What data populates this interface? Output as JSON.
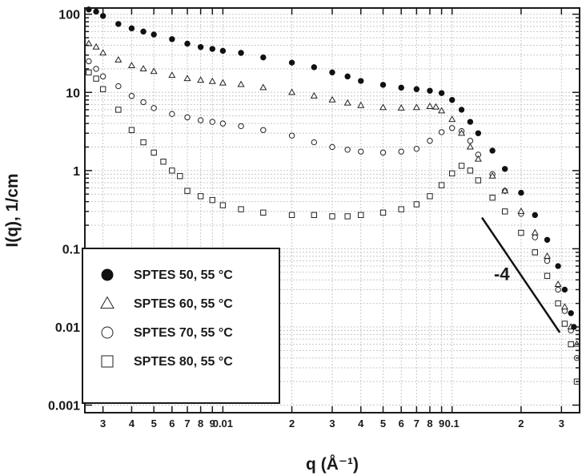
{
  "chart_data": {
    "type": "scatter",
    "title": "",
    "xlabel": "q (Å⁻¹)",
    "ylabel": "I(q), 1/cm",
    "x_scale": "log",
    "y_scale": "log",
    "xlim": [
      0.0025,
      0.36
    ],
    "ylim": [
      0.0008,
      120
    ],
    "grid": true,
    "legend_position": "bottom-left",
    "x_ticks": [
      {
        "value": 0.003,
        "label": "3"
      },
      {
        "value": 0.004,
        "label": "4"
      },
      {
        "value": 0.005,
        "label": "5"
      },
      {
        "value": 0.006,
        "label": "6"
      },
      {
        "value": 0.007,
        "label": "7"
      },
      {
        "value": 0.008,
        "label": "8"
      },
      {
        "value": 0.009,
        "label": "9"
      },
      {
        "value": 0.01,
        "label": "0.01"
      },
      {
        "value": 0.02,
        "label": "2"
      },
      {
        "value": 0.03,
        "label": "3"
      },
      {
        "value": 0.04,
        "label": "4"
      },
      {
        "value": 0.05,
        "label": "5"
      },
      {
        "value": 0.06,
        "label": "6"
      },
      {
        "value": 0.07,
        "label": "7"
      },
      {
        "value": 0.08,
        "label": "8"
      },
      {
        "value": 0.09,
        "label": "9"
      },
      {
        "value": 0.1,
        "label": "0.1"
      },
      {
        "value": 0.2,
        "label": "2"
      },
      {
        "value": 0.3,
        "label": "3"
      }
    ],
    "y_ticks": [
      {
        "value": 100,
        "label": "100"
      },
      {
        "value": 10,
        "label": "10"
      },
      {
        "value": 1,
        "label": "1"
      },
      {
        "value": 0.1,
        "label": "0.1"
      },
      {
        "value": 0.01,
        "label": "0.01"
      },
      {
        "value": 0.001,
        "label": "0.001"
      }
    ],
    "series": [
      {
        "name": "SPTES 50, 55 °C",
        "marker": "filled-circle",
        "points": [
          [
            0.0026,
            115
          ],
          [
            0.0028,
            108
          ],
          [
            0.003,
            95
          ],
          [
            0.0035,
            75
          ],
          [
            0.004,
            66
          ],
          [
            0.0045,
            60
          ],
          [
            0.005,
            55
          ],
          [
            0.006,
            48
          ],
          [
            0.007,
            42
          ],
          [
            0.008,
            38
          ],
          [
            0.009,
            36
          ],
          [
            0.01,
            34
          ],
          [
            0.012,
            32
          ],
          [
            0.015,
            28
          ],
          [
            0.02,
            24
          ],
          [
            0.025,
            21
          ],
          [
            0.03,
            18
          ],
          [
            0.035,
            16
          ],
          [
            0.04,
            14
          ],
          [
            0.05,
            12.5
          ],
          [
            0.06,
            11.5
          ],
          [
            0.07,
            11
          ],
          [
            0.08,
            10.5
          ],
          [
            0.09,
            9.8
          ],
          [
            0.1,
            8
          ],
          [
            0.11,
            6
          ],
          [
            0.12,
            4.2
          ],
          [
            0.13,
            3
          ],
          [
            0.15,
            1.8
          ],
          [
            0.17,
            1.05
          ],
          [
            0.2,
            0.52
          ],
          [
            0.23,
            0.27
          ],
          [
            0.26,
            0.13
          ],
          [
            0.29,
            0.06
          ],
          [
            0.31,
            0.03
          ],
          [
            0.33,
            0.015
          ],
          [
            0.34,
            0.01
          ]
        ]
      },
      {
        "name": "SPTES 60, 55 °C",
        "marker": "open-triangle",
        "points": [
          [
            0.0026,
            42
          ],
          [
            0.0028,
            38
          ],
          [
            0.003,
            32
          ],
          [
            0.0035,
            26
          ],
          [
            0.004,
            22
          ],
          [
            0.0045,
            20
          ],
          [
            0.005,
            18.5
          ],
          [
            0.006,
            16.5
          ],
          [
            0.007,
            15
          ],
          [
            0.008,
            14.3
          ],
          [
            0.009,
            13.8
          ],
          [
            0.01,
            13.2
          ],
          [
            0.012,
            12.6
          ],
          [
            0.015,
            11.5
          ],
          [
            0.02,
            10
          ],
          [
            0.025,
            9
          ],
          [
            0.03,
            8
          ],
          [
            0.035,
            7.3
          ],
          [
            0.04,
            6.8
          ],
          [
            0.05,
            6.4
          ],
          [
            0.06,
            6.3
          ],
          [
            0.07,
            6.4
          ],
          [
            0.08,
            6.6
          ],
          [
            0.085,
            6.5
          ],
          [
            0.09,
            5.8
          ],
          [
            0.1,
            4.5
          ],
          [
            0.11,
            3
          ],
          [
            0.12,
            2
          ],
          [
            0.13,
            1.4
          ],
          [
            0.15,
            0.85
          ],
          [
            0.17,
            0.55
          ],
          [
            0.2,
            0.3
          ],
          [
            0.23,
            0.16
          ],
          [
            0.26,
            0.08
          ],
          [
            0.29,
            0.035
          ],
          [
            0.31,
            0.018
          ],
          [
            0.33,
            0.01
          ],
          [
            0.35,
            0.006
          ]
        ]
      },
      {
        "name": "SPTES 70, 55 °C",
        "marker": "open-circle",
        "points": [
          [
            0.0026,
            25
          ],
          [
            0.0028,
            20
          ],
          [
            0.003,
            16
          ],
          [
            0.0035,
            12
          ],
          [
            0.004,
            9
          ],
          [
            0.0045,
            7.5
          ],
          [
            0.005,
            6.3
          ],
          [
            0.006,
            5.3
          ],
          [
            0.007,
            4.8
          ],
          [
            0.008,
            4.4
          ],
          [
            0.009,
            4.2
          ],
          [
            0.01,
            4
          ],
          [
            0.012,
            3.7
          ],
          [
            0.015,
            3.3
          ],
          [
            0.02,
            2.8
          ],
          [
            0.025,
            2.3
          ],
          [
            0.03,
            2
          ],
          [
            0.035,
            1.85
          ],
          [
            0.04,
            1.75
          ],
          [
            0.05,
            1.7
          ],
          [
            0.06,
            1.75
          ],
          [
            0.07,
            1.9
          ],
          [
            0.08,
            2.4
          ],
          [
            0.09,
            3.1
          ],
          [
            0.1,
            3.5
          ],
          [
            0.11,
            3.2
          ],
          [
            0.12,
            2.4
          ],
          [
            0.13,
            1.6
          ],
          [
            0.15,
            0.9
          ],
          [
            0.17,
            0.55
          ],
          [
            0.2,
            0.28
          ],
          [
            0.23,
            0.14
          ],
          [
            0.26,
            0.07
          ],
          [
            0.29,
            0.03
          ],
          [
            0.31,
            0.016
          ],
          [
            0.33,
            0.009
          ],
          [
            0.35,
            0.004
          ]
        ]
      },
      {
        "name": "SPTES 80, 55 °C",
        "marker": "open-square",
        "points": [
          [
            0.0026,
            18
          ],
          [
            0.0028,
            15
          ],
          [
            0.003,
            11
          ],
          [
            0.0035,
            6
          ],
          [
            0.004,
            3.3
          ],
          [
            0.0045,
            2.3
          ],
          [
            0.005,
            1.7
          ],
          [
            0.0055,
            1.3
          ],
          [
            0.006,
            1
          ],
          [
            0.0065,
            0.85
          ],
          [
            0.007,
            0.55
          ],
          [
            0.008,
            0.47
          ],
          [
            0.009,
            0.42
          ],
          [
            0.01,
            0.36
          ],
          [
            0.012,
            0.32
          ],
          [
            0.015,
            0.29
          ],
          [
            0.02,
            0.27
          ],
          [
            0.025,
            0.27
          ],
          [
            0.03,
            0.26
          ],
          [
            0.035,
            0.26
          ],
          [
            0.04,
            0.27
          ],
          [
            0.05,
            0.29
          ],
          [
            0.06,
            0.32
          ],
          [
            0.07,
            0.37
          ],
          [
            0.08,
            0.47
          ],
          [
            0.09,
            0.65
          ],
          [
            0.1,
            0.92
          ],
          [
            0.11,
            1.15
          ],
          [
            0.12,
            1
          ],
          [
            0.13,
            0.75
          ],
          [
            0.15,
            0.45
          ],
          [
            0.17,
            0.3
          ],
          [
            0.2,
            0.16
          ],
          [
            0.23,
            0.09
          ],
          [
            0.26,
            0.045
          ],
          [
            0.29,
            0.02
          ],
          [
            0.31,
            0.011
          ],
          [
            0.33,
            0.006
          ],
          [
            0.35,
            0.002
          ]
        ]
      }
    ],
    "slope_line": {
      "label": "-4",
      "points": [
        [
          0.135,
          0.25
        ],
        [
          0.295,
          0.0085
        ]
      ]
    }
  }
}
